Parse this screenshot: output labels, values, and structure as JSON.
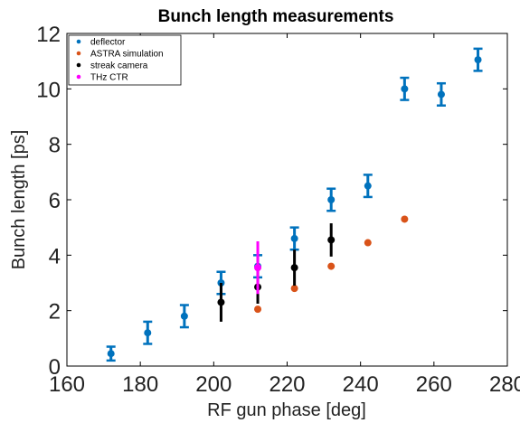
{
  "chart_data": {
    "type": "scatter",
    "title": "Bunch length measurements",
    "xlabel": "RF gun phase [deg]",
    "ylabel": "Bunch length [ps]",
    "xlim": [
      160,
      280
    ],
    "ylim": [
      0,
      12
    ],
    "xticks": [
      "160",
      "180",
      "200",
      "220",
      "240",
      "260",
      "280"
    ],
    "yticks": [
      "0",
      "2",
      "4",
      "6",
      "8",
      "10",
      "12"
    ],
    "grid": false,
    "legend_position": "top-left",
    "series": [
      {
        "name": "deflector",
        "color": "#0072bd",
        "points": [
          {
            "x": 172,
            "y": 0.45,
            "err": 0.25
          },
          {
            "x": 182,
            "y": 1.2,
            "err": 0.4
          },
          {
            "x": 192,
            "y": 1.8,
            "err": 0.4
          },
          {
            "x": 202,
            "y": 3.0,
            "err": 0.4
          },
          {
            "x": 212,
            "y": 3.6,
            "err": 0.4
          },
          {
            "x": 222,
            "y": 4.6,
            "err": 0.4
          },
          {
            "x": 232,
            "y": 6.0,
            "err": 0.4
          },
          {
            "x": 242,
            "y": 6.5,
            "err": 0.4
          },
          {
            "x": 252,
            "y": 10.0,
            "err": 0.4
          },
          {
            "x": 262,
            "y": 9.8,
            "err": 0.4
          },
          {
            "x": 272,
            "y": 11.05,
            "err": 0.4
          }
        ]
      },
      {
        "name": "ASTRA simulation",
        "color": "#d95319",
        "points": [
          {
            "x": 212,
            "y": 2.05
          },
          {
            "x": 222,
            "y": 2.8
          },
          {
            "x": 232,
            "y": 3.6
          },
          {
            "x": 242,
            "y": 4.45
          },
          {
            "x": 252,
            "y": 5.3
          }
        ]
      },
      {
        "name": "streak camera",
        "color": "#000000",
        "points": [
          {
            "x": 202,
            "y": 2.3,
            "err": 0.7
          },
          {
            "x": 212,
            "y": 2.85,
            "err": 0.6
          },
          {
            "x": 222,
            "y": 3.55,
            "err": 0.65
          },
          {
            "x": 232,
            "y": 4.55,
            "err": 0.6
          }
        ]
      },
      {
        "name": "THz CTR",
        "color": "#ff00ff",
        "points": [
          {
            "x": 212,
            "y": 3.55,
            "err": 0.95
          }
        ]
      }
    ]
  }
}
